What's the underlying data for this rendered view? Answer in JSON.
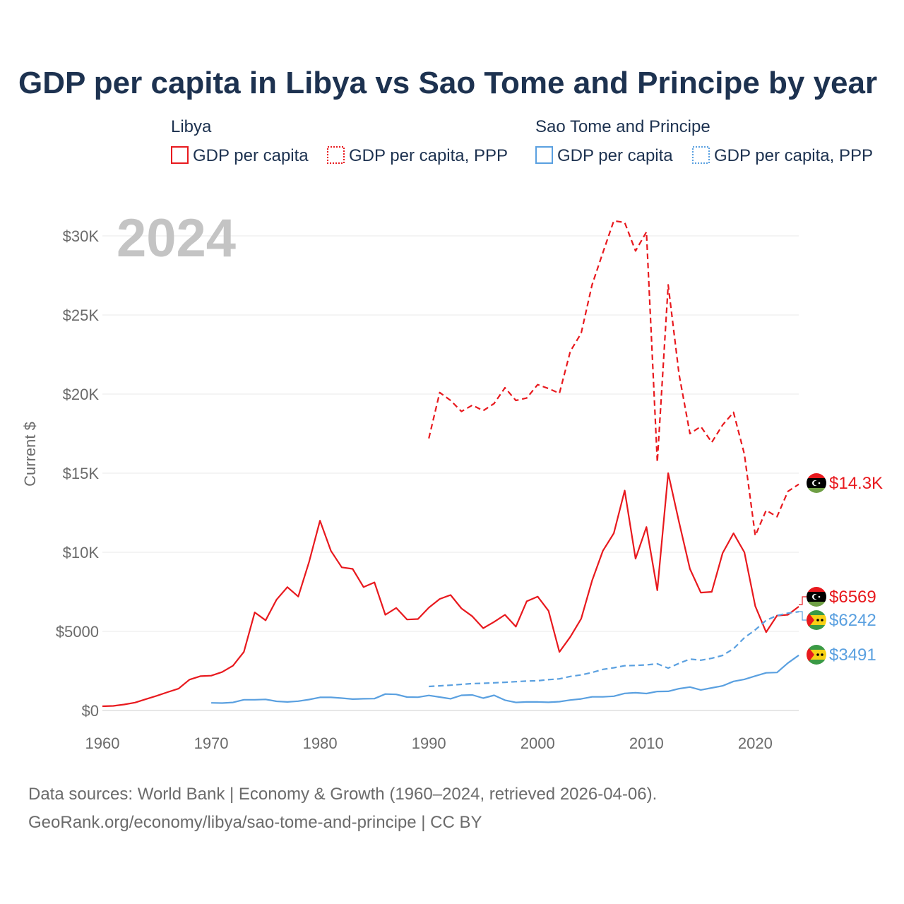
{
  "chart_data": {
    "type": "line",
    "title": "GDP per capita in Libya vs Sao Tome and Principe by year",
    "year_label": "2024",
    "ylabel": "Current $",
    "xlabel": "",
    "xlim": [
      1960,
      2024
    ],
    "ylim": [
      0,
      32000
    ],
    "x_ticks": [
      1960,
      1970,
      1980,
      1990,
      2000,
      2010,
      2020
    ],
    "x_tick_labels": [
      "1960",
      "1970",
      "1980",
      "1990",
      "2000",
      "2010",
      "2020"
    ],
    "y_ticks": [
      0,
      5000,
      10000,
      15000,
      20000,
      25000,
      30000
    ],
    "y_tick_labels": [
      "$0",
      "$5000",
      "$10K",
      "$15K",
      "$20K",
      "$25K",
      "$30K"
    ],
    "grid": true,
    "legend": {
      "placement": "top",
      "groups": [
        {
          "name": "Libya",
          "entries": [
            "GDP per capita",
            "GDP per capita, PPP"
          ]
        },
        {
          "name": "Sao Tome and Principe",
          "entries": [
            "GDP per capita",
            "GDP per capita, PPP"
          ]
        }
      ]
    },
    "colors": {
      "libya": "#e8191e",
      "stp": "#5aa0e0"
    },
    "series": [
      {
        "name": "Libya GDP per capita",
        "country": "Libya",
        "style": "solid",
        "color": "#e8191e",
        "start_year": 1960,
        "values": [
          270,
          290,
          380,
          500,
          720,
          930,
          1160,
          1380,
          1950,
          2170,
          2200,
          2430,
          2830,
          3700,
          6200,
          5700,
          7000,
          7800,
          7200,
          9400,
          12000,
          10100,
          9050,
          8950,
          7800,
          8100,
          6050,
          6480,
          5750,
          5780,
          6500,
          7050,
          7300,
          6450,
          5950,
          5200,
          5600,
          6050,
          5300,
          6900,
          7200,
          6300,
          3700,
          4650,
          5800,
          8200,
          10100,
          11200,
          13900,
          9600,
          11600,
          7600,
          15000,
          11900,
          8950,
          7450,
          7500,
          9950,
          11200,
          10000,
          6600,
          4950,
          6000,
          6050,
          6569
        ],
        "end_label": "$6569"
      },
      {
        "name": "Libya GDP per capita, PPP",
        "country": "Libya",
        "style": "dashed",
        "color": "#e8191e",
        "start_year": 1990,
        "values": [
          17200,
          20100,
          19600,
          18900,
          19300,
          18950,
          19400,
          20400,
          19600,
          19750,
          20600,
          20350,
          20050,
          22700,
          23850,
          26900,
          28950,
          30950,
          30850,
          29050,
          30250,
          15700,
          26900,
          21250,
          17500,
          17950,
          16950,
          18050,
          18850,
          16200,
          11050,
          12650,
          12250,
          13850,
          14300
        ],
        "end_label": "$14.3K"
      },
      {
        "name": "Sao Tome and Principe GDP per capita",
        "country": "Sao Tome and Principe",
        "style": "solid",
        "color": "#5aa0e0",
        "start_year": 1970,
        "values": [
          480,
          470,
          510,
          680,
          680,
          700,
          580,
          540,
          590,
          690,
          830,
          830,
          780,
          720,
          740,
          750,
          1040,
          1020,
          850,
          840,
          950,
          850,
          740,
          960,
          980,
          780,
          960,
          650,
          510,
          540,
          540,
          520,
          560,
          660,
          730,
          860,
          860,
          900,
          1080,
          1120,
          1070,
          1200,
          1210,
          1380,
          1480,
          1300,
          1430,
          1560,
          1840,
          1970,
          2180,
          2380,
          2400,
          3000,
          3491
        ],
        "end_label": "$3491"
      },
      {
        "name": "Sao Tome and Principe GDP per capita, PPP",
        "country": "Sao Tome and Principe",
        "style": "dashed",
        "color": "#5aa0e0",
        "start_year": 1990,
        "values": [
          1520,
          1560,
          1600,
          1650,
          1700,
          1720,
          1750,
          1780,
          1820,
          1860,
          1880,
          1950,
          2000,
          2150,
          2250,
          2400,
          2600,
          2700,
          2830,
          2850,
          2880,
          2950,
          2680,
          2980,
          3250,
          3180,
          3300,
          3480,
          3900,
          4600,
          5100,
          5700,
          6000,
          6150,
          6242
        ],
        "end_label": "$6242"
      }
    ]
  },
  "footer": {
    "source_line": "Data sources: World Bank | Economy & Growth (1960–2024, retrieved 2026-04-06).",
    "url_line": "GeoRank.org/economy/libya/sao-tome-and-principe | CC BY"
  }
}
